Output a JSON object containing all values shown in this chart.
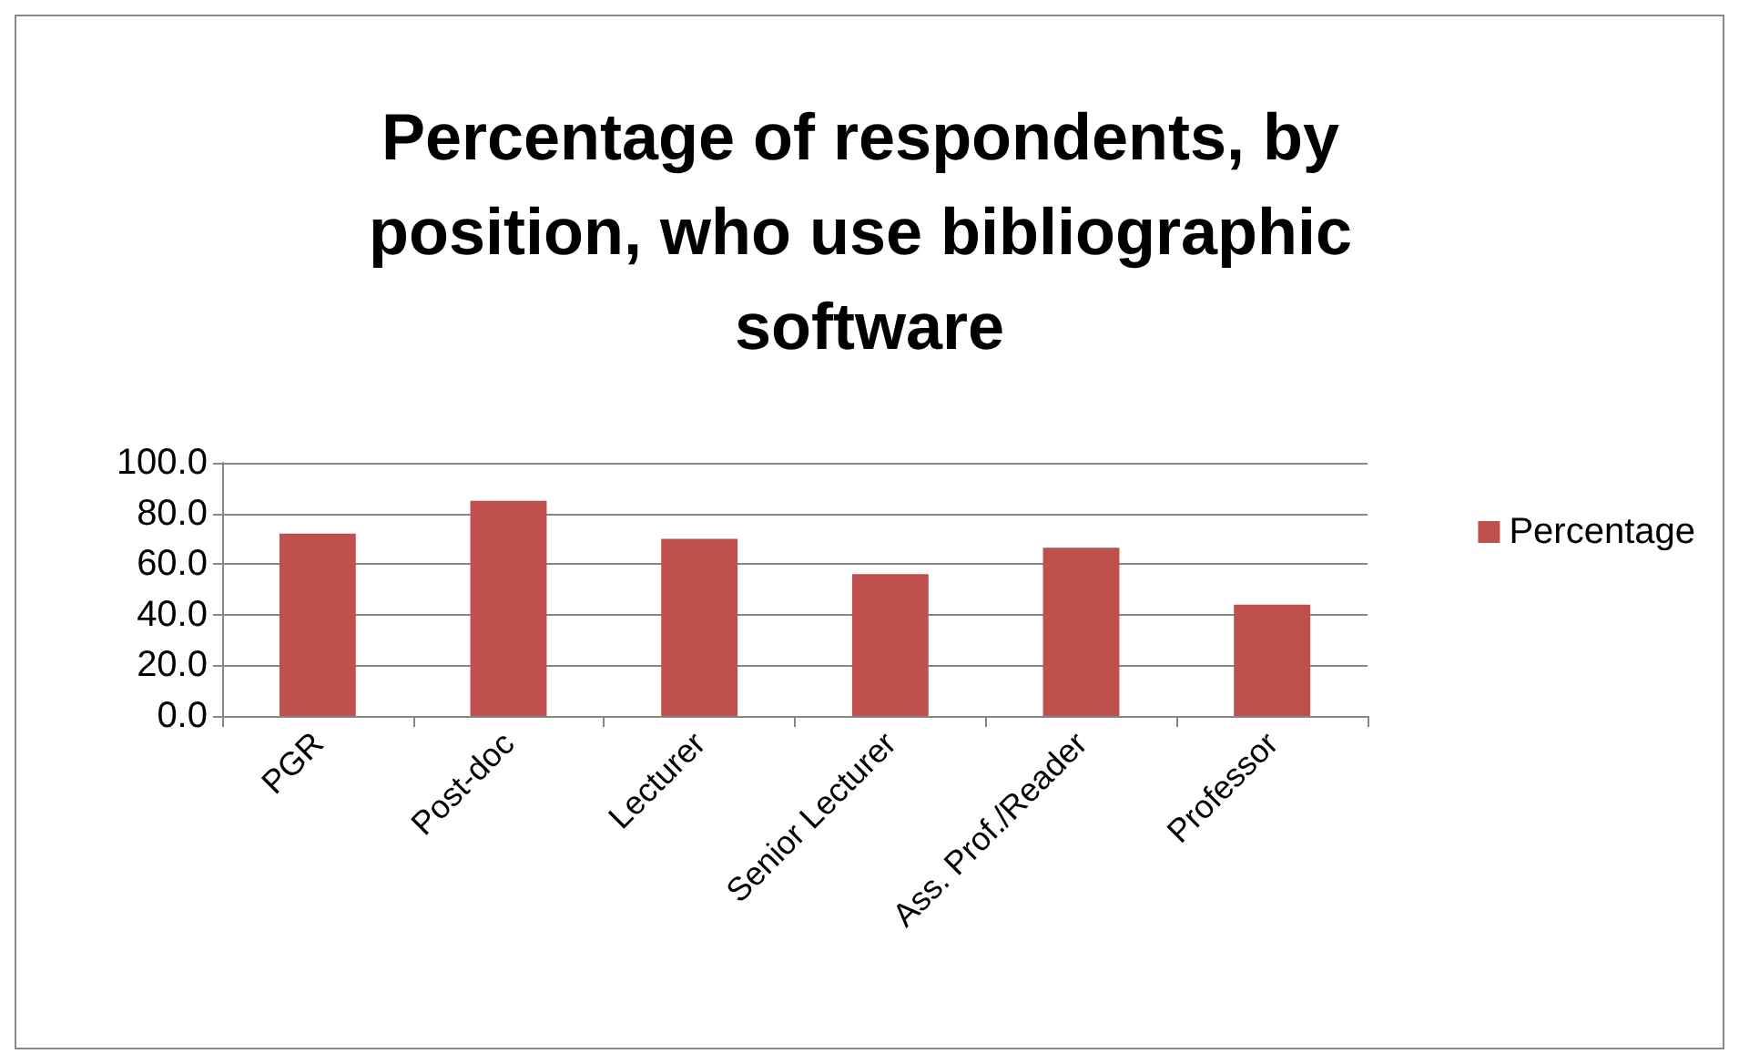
{
  "chart_data": {
    "type": "bar",
    "title": "Percentage of respondents, by position, who use bibliographic software",
    "categories": [
      "PGR",
      "Post-doc",
      "Lecturer",
      "Senior Lecturer",
      "Ass. Prof./Reader",
      "Professor"
    ],
    "series": [
      {
        "name": "Percentage",
        "color": "#c0504d",
        "values": [
          72,
          85,
          70,
          56,
          66.5,
          44
        ]
      }
    ],
    "ylim": [
      0,
      100
    ],
    "yticks": [
      {
        "value": 0,
        "label": "0.0"
      },
      {
        "value": 20,
        "label": "20.0"
      },
      {
        "value": 40,
        "label": "40.0"
      },
      {
        "value": 60,
        "label": "60.0"
      },
      {
        "value": 80,
        "label": "80.0"
      },
      {
        "value": 100,
        "label": "100.0"
      }
    ],
    "grid": "y",
    "legend": "right"
  }
}
